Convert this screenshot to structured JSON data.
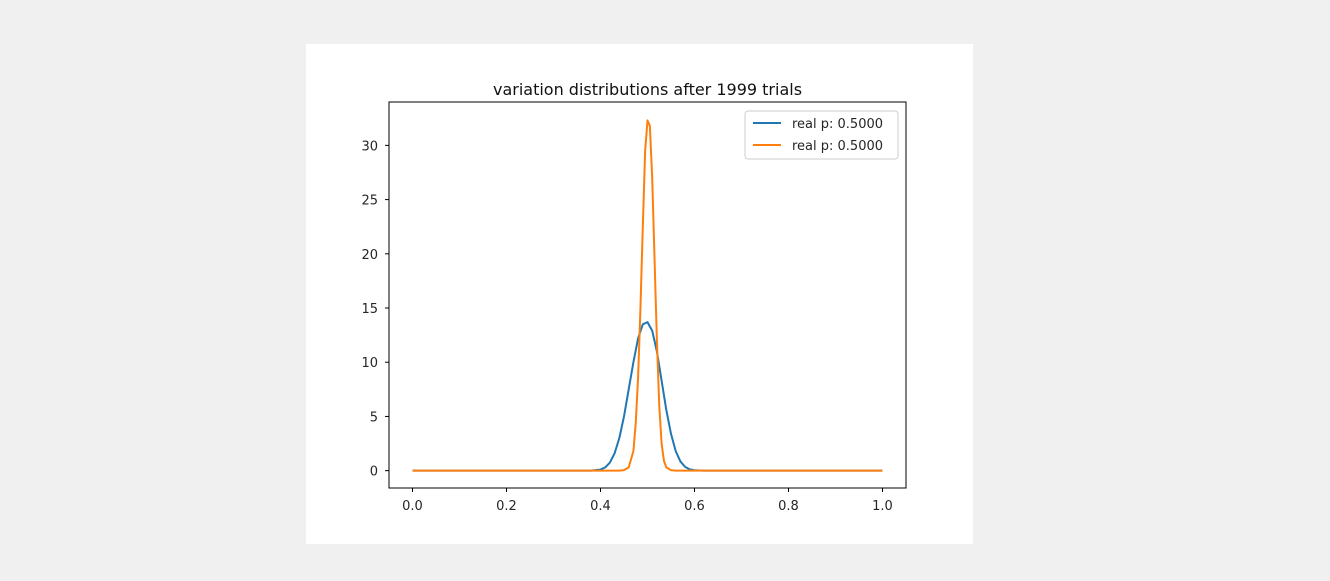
{
  "chart_data": {
    "type": "line",
    "title": "variation distributions after 1999 trials",
    "xlabel": "",
    "ylabel": "",
    "xlim": [
      -0.05,
      1.05
    ],
    "ylim": [
      -1.6,
      34.0
    ],
    "xticks": [
      0.0,
      0.2,
      0.4,
      0.6,
      0.8,
      1.0
    ],
    "xtick_labels": [
      "0.0",
      "0.2",
      "0.4",
      "0.6",
      "0.8",
      "1.0"
    ],
    "yticks": [
      0,
      5,
      10,
      15,
      20,
      25,
      30
    ],
    "ytick_labels": [
      "0",
      "5",
      "10",
      "15",
      "20",
      "25",
      "30"
    ],
    "grid": false,
    "legend_position": "top-right",
    "series": [
      {
        "name": "real p: 0.5000",
        "color": "#1f77b4",
        "x": [
          0.0,
          0.38,
          0.39,
          0.4,
          0.41,
          0.42,
          0.43,
          0.44,
          0.45,
          0.46,
          0.47,
          0.48,
          0.49,
          0.5,
          0.51,
          0.52,
          0.53,
          0.54,
          0.55,
          0.56,
          0.57,
          0.58,
          0.59,
          0.6,
          0.62,
          1.0
        ],
        "y": [
          0.0,
          0.0,
          0.05,
          0.1,
          0.3,
          0.75,
          1.6,
          3.0,
          5.0,
          7.5,
          10.0,
          12.2,
          13.5,
          13.7,
          12.9,
          11.0,
          8.3,
          5.6,
          3.4,
          1.8,
          0.85,
          0.35,
          0.12,
          0.04,
          0.0,
          0.0
        ]
      },
      {
        "name": "real p: 0.5000",
        "color": "#ff7f0e",
        "x": [
          0.0,
          0.44,
          0.45,
          0.46,
          0.47,
          0.475,
          0.48,
          0.485,
          0.49,
          0.495,
          0.5,
          0.505,
          0.51,
          0.515,
          0.52,
          0.525,
          0.53,
          0.535,
          0.54,
          0.55,
          0.56,
          1.0
        ],
        "y": [
          0.0,
          0.0,
          0.05,
          0.3,
          1.8,
          4.4,
          8.6,
          15.0,
          22.5,
          29.5,
          32.3,
          31.8,
          27.0,
          19.5,
          12.0,
          6.0,
          2.5,
          0.9,
          0.3,
          0.05,
          0.0,
          0.0
        ]
      }
    ]
  }
}
